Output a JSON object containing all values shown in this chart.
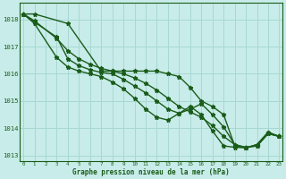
{
  "xlabel": "Graphe pression niveau de la mer (hPa)",
  "ylim": [
    1012.8,
    1018.6
  ],
  "xlim": [
    -0.3,
    23.3
  ],
  "yticks": [
    1013,
    1014,
    1015,
    1016,
    1017,
    1018
  ],
  "xticks": [
    0,
    1,
    2,
    3,
    4,
    5,
    6,
    7,
    8,
    9,
    10,
    11,
    12,
    13,
    14,
    15,
    16,
    17,
    18,
    19,
    20,
    21,
    22,
    23
  ],
  "bg_color": "#c8ece9",
  "grid_color": "#a8d8d2",
  "line_color": "#1a5c1a",
  "line_width": 1.0,
  "marker": "*",
  "marker_size": 3.5,
  "series": [
    [
      1018.2,
      1018.2,
      null,
      null,
      1017.85,
      null,
      null,
      1016.1,
      1016.1,
      1016.1,
      1016.1,
      1016.1,
      1016.1,
      1016.0,
      1015.9,
      1015.5,
      1015.0,
      1014.8,
      1014.5,
      1013.35,
      1013.3,
      1013.35,
      1013.8,
      1013.7
    ],
    [
      1018.2,
      1017.9,
      null,
      1017.35,
      1016.55,
      1016.3,
      1016.15,
      1016.05,
      1016.0,
      1015.8,
      1015.55,
      1015.3,
      1015.0,
      1014.7,
      1014.55,
      1014.7,
      1014.9,
      1014.5,
      1014.05,
      1013.4,
      1013.28,
      1013.4,
      1013.85,
      1013.7
    ],
    [
      1018.2,
      1017.85,
      null,
      1016.6,
      1016.25,
      1016.1,
      1016.0,
      1015.9,
      1015.7,
      1015.45,
      1015.1,
      1014.7,
      1014.4,
      1014.3,
      1014.55,
      1014.8,
      1014.5,
      1013.9,
      1013.35,
      1013.3,
      1013.28,
      1013.4,
      1013.85,
      1013.7
    ],
    [
      1018.2,
      1017.95,
      null,
      1017.3,
      1016.85,
      1016.55,
      1016.35,
      1016.2,
      1016.1,
      1016.0,
      1015.85,
      1015.65,
      1015.4,
      1015.1,
      1014.8,
      1014.6,
      1014.4,
      1014.1,
      1013.7,
      1013.4,
      1013.3,
      1013.35,
      1013.8,
      1013.7
    ]
  ]
}
